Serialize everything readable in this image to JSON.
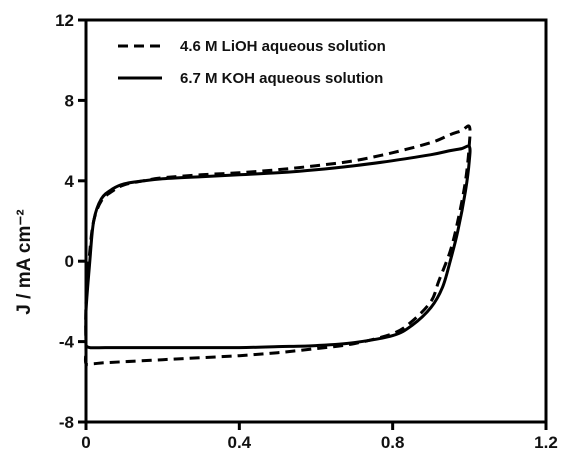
{
  "chart_data": {
    "type": "line",
    "title": "",
    "xlabel": "",
    "ylabel": "J / mA cm⁻²",
    "xlim": [
      0,
      1.2
    ],
    "ylim": [
      -8,
      12
    ],
    "xticks": [
      "0",
      "0.4",
      "0.8",
      "1.2"
    ],
    "yticks": [
      "-8",
      "-4",
      "0",
      "4",
      "8",
      "12"
    ],
    "grid": false,
    "legend_position": "top-left",
    "series": [
      {
        "name": "4.6 M LiOH aqueous solution",
        "style": "dashed",
        "color": "#000000",
        "x": [
          0.0,
          0.0,
          0.01,
          0.02,
          0.04,
          0.07,
          0.1,
          0.15,
          0.2,
          0.3,
          0.4,
          0.5,
          0.6,
          0.7,
          0.8,
          0.9,
          0.95,
          0.98,
          1.0,
          1.0,
          0.99,
          0.97,
          0.95,
          0.92,
          0.9,
          0.85,
          0.8,
          0.7,
          0.6,
          0.5,
          0.4,
          0.3,
          0.2,
          0.1,
          0.05,
          0.02,
          0.0,
          0.0
        ],
        "y": [
          -4.5,
          -2.0,
          0.5,
          2.0,
          3.0,
          3.5,
          3.8,
          4.0,
          4.15,
          4.3,
          4.4,
          4.55,
          4.75,
          5.0,
          5.4,
          5.9,
          6.3,
          6.5,
          6.7,
          5.8,
          4.0,
          2.0,
          0.5,
          -1.0,
          -2.0,
          -3.0,
          -3.6,
          -4.1,
          -4.35,
          -4.55,
          -4.7,
          -4.8,
          -4.9,
          -5.0,
          -5.05,
          -5.1,
          -5.1,
          -4.5
        ]
      },
      {
        "name": "6.7 M KOH aqueous solution",
        "style": "solid",
        "color": "#000000",
        "x": [
          0.0,
          0.0,
          0.01,
          0.02,
          0.04,
          0.07,
          0.1,
          0.15,
          0.2,
          0.3,
          0.4,
          0.5,
          0.6,
          0.7,
          0.8,
          0.9,
          0.95,
          0.98,
          1.0,
          1.0,
          0.99,
          0.97,
          0.95,
          0.93,
          0.9,
          0.85,
          0.8,
          0.7,
          0.6,
          0.5,
          0.4,
          0.3,
          0.2,
          0.1,
          0.05,
          0.01,
          0.0
        ],
        "y": [
          -4.2,
          -2.5,
          0.0,
          2.0,
          3.1,
          3.6,
          3.85,
          4.0,
          4.1,
          4.2,
          4.3,
          4.4,
          4.55,
          4.75,
          5.0,
          5.3,
          5.5,
          5.6,
          5.7,
          5.0,
          3.5,
          1.5,
          0.0,
          -1.3,
          -2.3,
          -3.2,
          -3.7,
          -4.05,
          -4.2,
          -4.25,
          -4.3,
          -4.3,
          -4.3,
          -4.3,
          -4.3,
          -4.3,
          -4.2
        ]
      }
    ]
  }
}
